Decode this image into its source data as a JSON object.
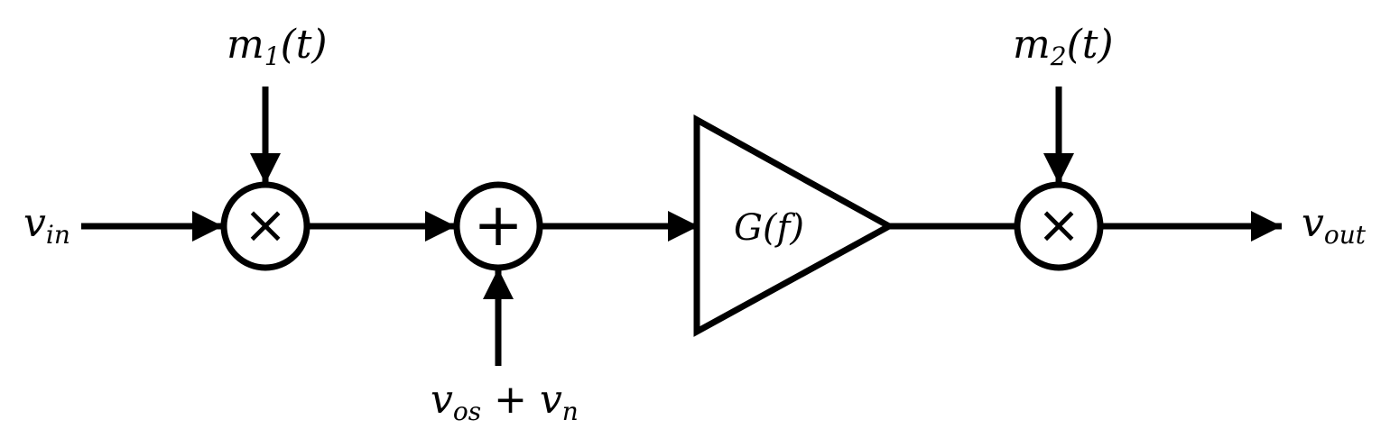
{
  "diagram": {
    "input": {
      "main": "v",
      "sub": "in"
    },
    "output": {
      "main": "v",
      "sub": "out"
    },
    "modulator1": {
      "main": "m",
      "sub": "1",
      "tail": "(t)"
    },
    "modulator2": {
      "main": "m",
      "sub": "2",
      "tail": "(t)"
    },
    "noise": {
      "main1": "v",
      "sub1": "os",
      "op": " + ",
      "main2": "v",
      "sub2": "n"
    },
    "amplifier": {
      "label": "G(f)"
    },
    "mixer_symbol": "×",
    "adder_symbol": "+",
    "colors": {
      "stroke": "#000000",
      "background": "#ffffff"
    }
  }
}
